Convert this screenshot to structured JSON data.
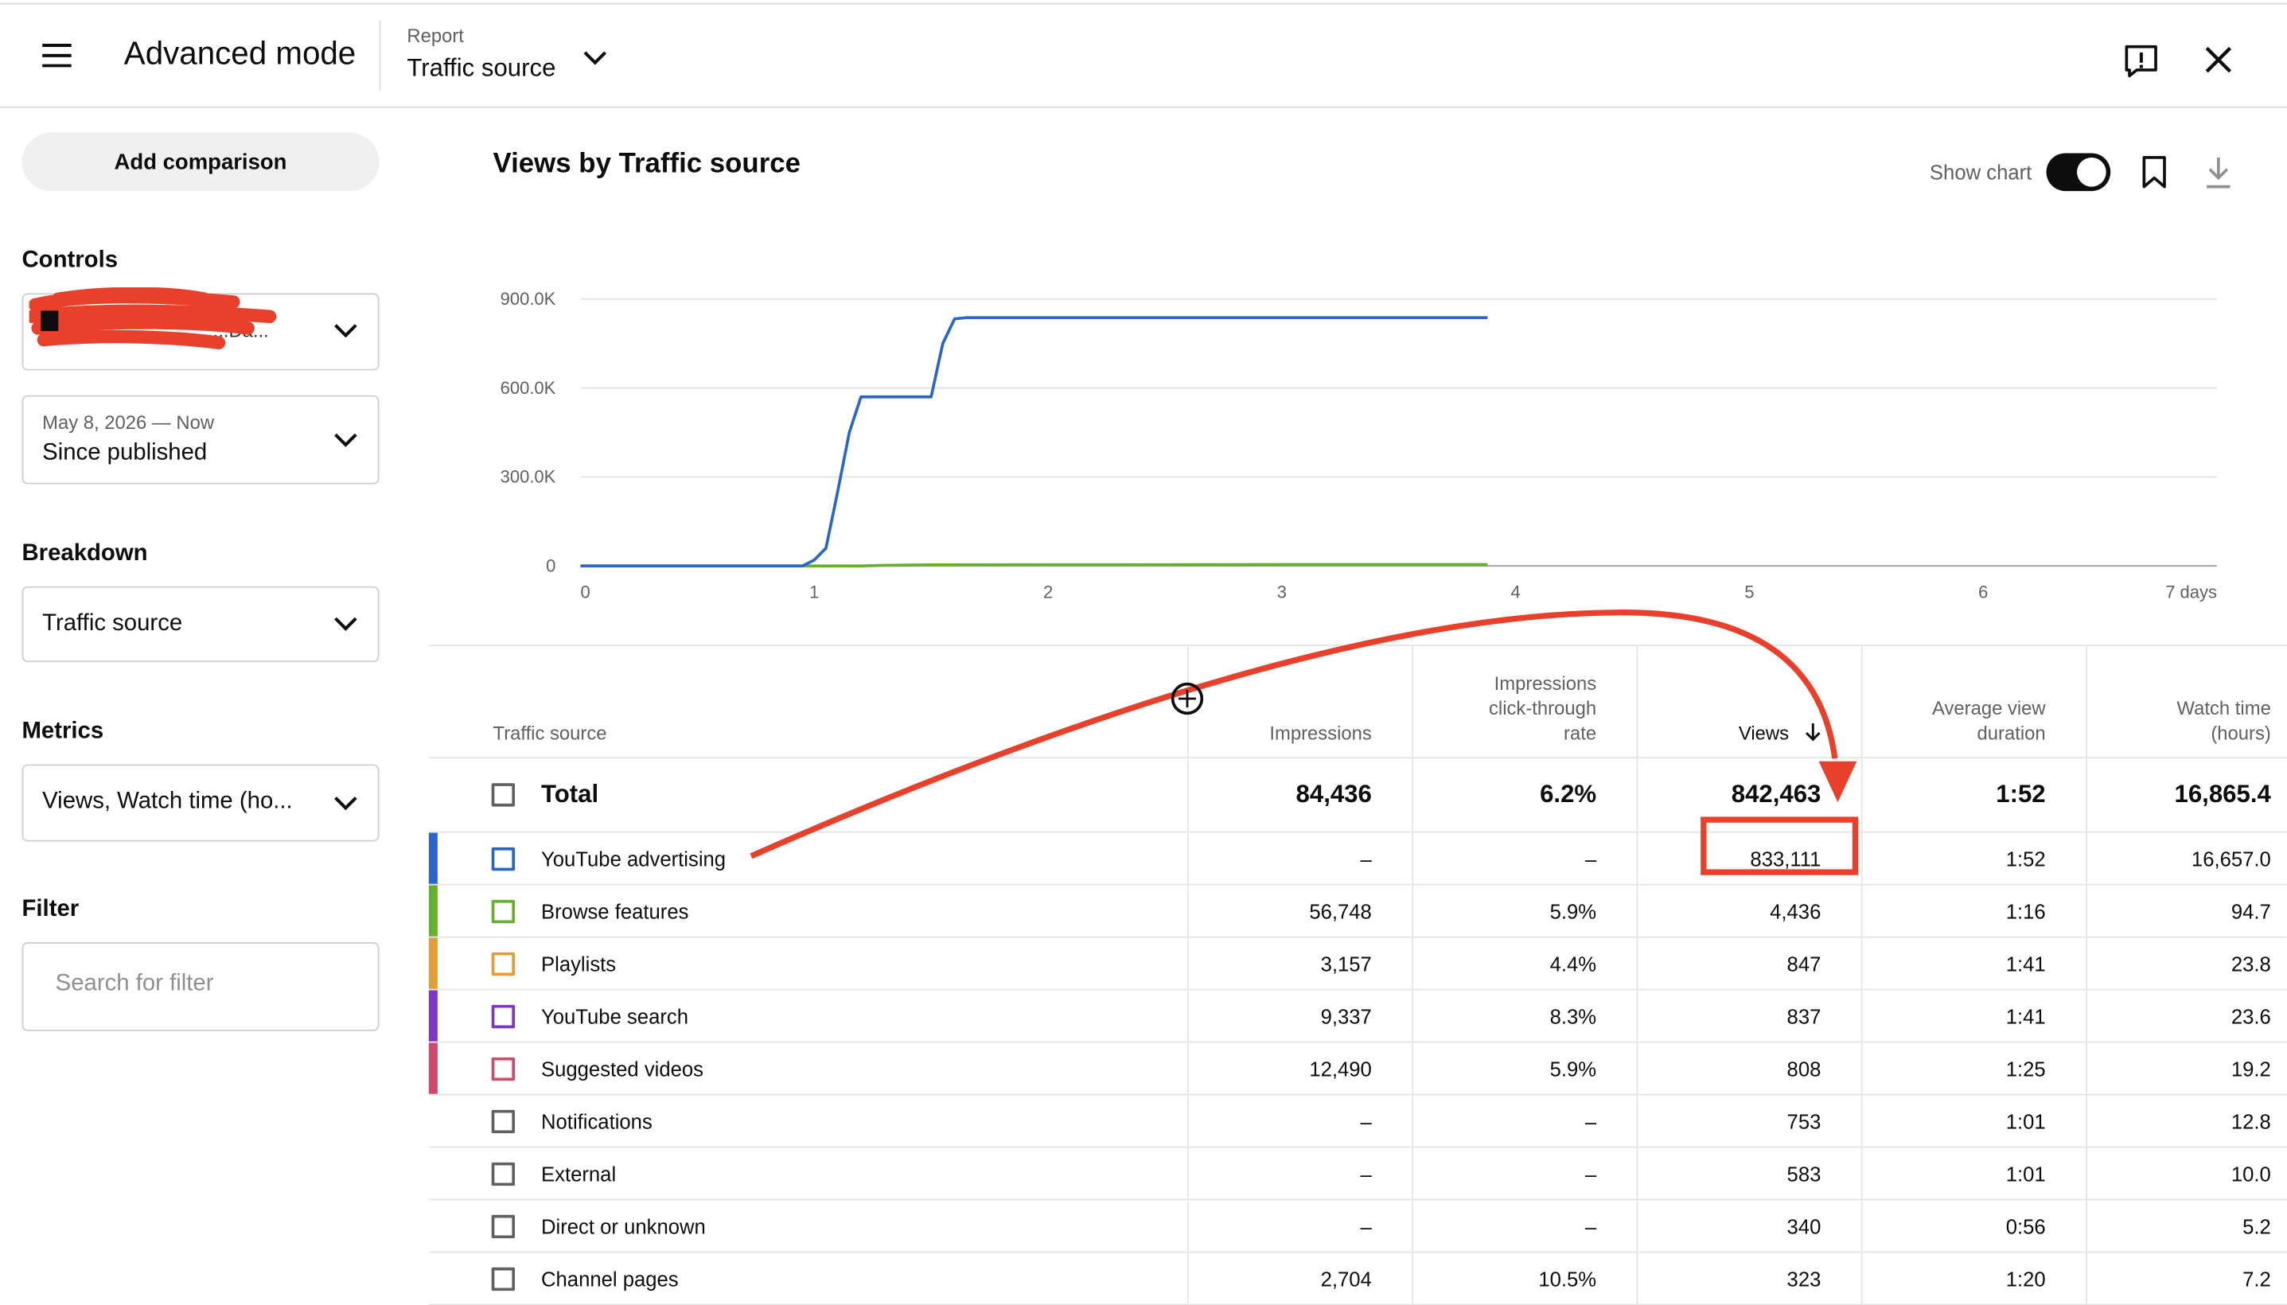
{
  "header": {
    "title": "Advanced mode",
    "report_label": "Report",
    "report_value": "Traffic source"
  },
  "sidebar": {
    "add_comparison": "Add comparison",
    "controls_label": "Controls",
    "control_value_visible": "...Da...",
    "date_range": "May 8, 2026 — Now",
    "date_value": "Since published",
    "breakdown_label": "Breakdown",
    "breakdown_value": "Traffic source",
    "metrics_label": "Metrics",
    "metrics_value": "Views, Watch time (ho...",
    "filter_label": "Filter",
    "filter_placeholder": "Search for filter"
  },
  "chart_header": {
    "title": "Views by Traffic source",
    "show_chart_label": "Show chart",
    "show_chart_on": true
  },
  "chart_data": {
    "type": "line",
    "title": "Views by Traffic source",
    "xlabel": "",
    "ylabel": "",
    "x_ticks": [
      "0",
      "1",
      "2",
      "3",
      "4",
      "5",
      "6",
      "7 days"
    ],
    "y_ticks": [
      "0",
      "300.0K",
      "600.0K",
      "900.0K"
    ],
    "xlim": [
      0,
      7
    ],
    "ylim": [
      0,
      900000
    ],
    "grid": true,
    "series": [
      {
        "name": "YouTube advertising",
        "color": "#2966c9",
        "x": [
          0,
          0.95,
          1.0,
          1.05,
          1.1,
          1.15,
          1.2,
          1.28,
          1.4,
          1.5,
          1.55,
          1.6,
          1.65,
          2.0,
          3.0,
          3.88
        ],
        "y": [
          0,
          0,
          20000,
          60000,
          250000,
          450000,
          570000,
          570000,
          570000,
          570000,
          750000,
          833000,
          837000,
          837000,
          837000,
          837000
        ]
      },
      {
        "name": "Browse features",
        "color": "#66b02e",
        "x": [
          0,
          1.2,
          1.3,
          1.5,
          2.0,
          3.0,
          3.88
        ],
        "y": [
          0,
          0,
          2000,
          3500,
          4000,
          4300,
          4436
        ]
      }
    ]
  },
  "table": {
    "headers": [
      "Traffic source",
      "Impressions",
      "Impressions click-through rate",
      "Views",
      "Average view duration",
      "Watch time (hours)"
    ],
    "total": {
      "label": "Total",
      "impressions": "84,436",
      "ctr": "6.2%",
      "views": "842,463",
      "avd": "1:52",
      "watch": "16,865.4"
    },
    "rows": [
      {
        "source": "YouTube advertising",
        "color": "#2966c9",
        "impressions": "–",
        "ctr": "–",
        "views": "833,111",
        "avd": "1:52",
        "watch": "16,657.0"
      },
      {
        "source": "Browse features",
        "color": "#66b02e",
        "impressions": "56,748",
        "ctr": "5.9%",
        "views": "4,436",
        "avd": "1:16",
        "watch": "94.7"
      },
      {
        "source": "Playlists",
        "color": "#e39e35",
        "impressions": "3,157",
        "ctr": "4.4%",
        "views": "847",
        "avd": "1:41",
        "watch": "23.8"
      },
      {
        "source": "YouTube search",
        "color": "#7b38c8",
        "impressions": "9,337",
        "ctr": "8.3%",
        "views": "837",
        "avd": "1:41",
        "watch": "23.6"
      },
      {
        "source": "Suggested videos",
        "color": "#cf4a6a",
        "impressions": "12,490",
        "ctr": "5.9%",
        "views": "808",
        "avd": "1:25",
        "watch": "19.2"
      },
      {
        "source": "Notifications",
        "color": "",
        "impressions": "–",
        "ctr": "–",
        "views": "753",
        "avd": "1:01",
        "watch": "12.8"
      },
      {
        "source": "External",
        "color": "",
        "impressions": "–",
        "ctr": "–",
        "views": "583",
        "avd": "1:01",
        "watch": "10.0"
      },
      {
        "source": "Direct or unknown",
        "color": "",
        "impressions": "–",
        "ctr": "–",
        "views": "340",
        "avd": "0:56",
        "watch": "5.2"
      },
      {
        "source": "Channel pages",
        "color": "",
        "impressions": "2,704",
        "ctr": "10.5%",
        "views": "323",
        "avd": "1:20",
        "watch": "7.2"
      }
    ]
  },
  "annotation": {
    "color": "#e8402a"
  }
}
